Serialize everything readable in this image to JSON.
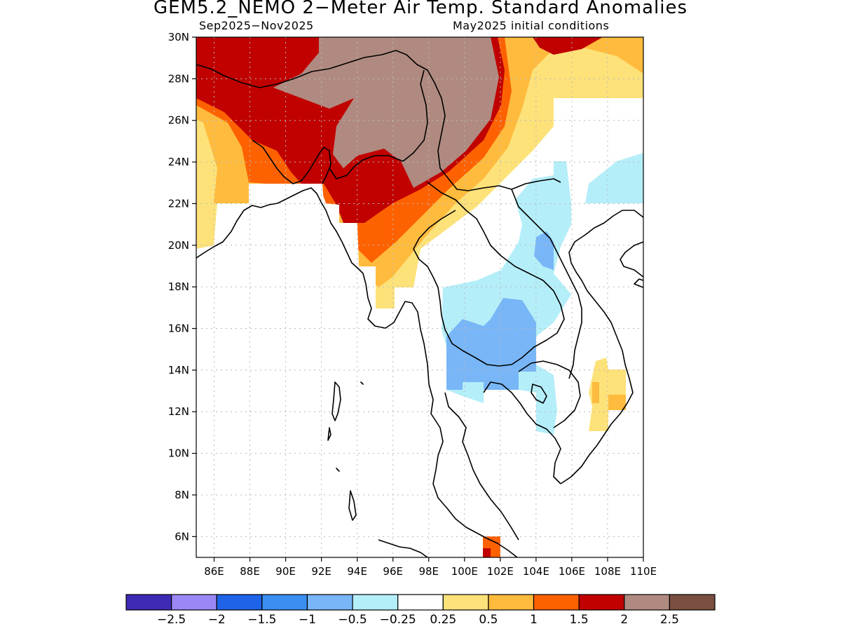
{
  "title": "GEM5.2_NEMO 2−Meter Air Temp. Standard Anomalies",
  "subtitle_left": "Sep2025−Nov2025",
  "subtitle_right": "May2025 initial conditions",
  "map": {
    "lon_range": [
      85,
      110
    ],
    "lat_range": [
      5,
      30
    ],
    "lat_ticks": [
      {
        "value": 30,
        "label": "30N"
      },
      {
        "value": 28,
        "label": "28N"
      },
      {
        "value": 26,
        "label": "26N"
      },
      {
        "value": 24,
        "label": "24N"
      },
      {
        "value": 22,
        "label": "22N"
      },
      {
        "value": 20,
        "label": "20N"
      },
      {
        "value": 18,
        "label": "18N"
      },
      {
        "value": 16,
        "label": "16N"
      },
      {
        "value": 14,
        "label": "14N"
      },
      {
        "value": 12,
        "label": "12N"
      },
      {
        "value": 10,
        "label": "10N"
      },
      {
        "value": 8,
        "label": "8N"
      },
      {
        "value": 6,
        "label": "6N"
      }
    ],
    "lon_ticks": [
      {
        "value": 86,
        "label": "86E"
      },
      {
        "value": 88,
        "label": "88E"
      },
      {
        "value": 90,
        "label": "90E"
      },
      {
        "value": 92,
        "label": "92E"
      },
      {
        "value": 94,
        "label": "94E"
      },
      {
        "value": 96,
        "label": "96E"
      },
      {
        "value": 98,
        "label": "98E"
      },
      {
        "value": 100,
        "label": "100E"
      },
      {
        "value": 102,
        "label": "102E"
      },
      {
        "value": 104,
        "label": "104E"
      },
      {
        "value": 106,
        "label": "106E"
      },
      {
        "value": 108,
        "label": "108E"
      },
      {
        "value": 110,
        "label": "110E"
      }
    ],
    "grid": true
  },
  "colorbar": {
    "colors": [
      "#3d2bb5",
      "#9b87f5",
      "#1f63e8",
      "#3a8ff0",
      "#78b6f7",
      "#b4eef9",
      "#ffffff",
      "#fde27a",
      "#ffbb3d",
      "#fe6200",
      "#c10000",
      "#b08a80",
      "#7a4e40"
    ],
    "labels": [
      "−2.5",
      "−2",
      "−1.5",
      "−1",
      "−0.5",
      "−0.25",
      "0.25",
      "0.5",
      "1",
      "1.5",
      "2",
      "2.5"
    ]
  },
  "anomaly_regions": [
    {
      "name": "very-warm-north",
      "level": "2 to 2.5",
      "color": "#b08a80"
    },
    {
      "name": "warm-north-belt",
      "level": "1.5 to 2",
      "color": "#c10000"
    },
    {
      "name": "warm-band",
      "level": "1 to 1.5",
      "color": "#fe6200"
    },
    {
      "name": "mild-warm-band",
      "level": "0.5 to 1",
      "color": "#ffbb3d"
    },
    {
      "name": "slight-warm-band",
      "level": "0.25 to 0.5",
      "color": "#fde27a"
    },
    {
      "name": "cool-indochina",
      "level": "-0.5 to -0.25",
      "color": "#b4eef9"
    },
    {
      "name": "cooler-thailand",
      "level": "-1 to -0.5",
      "color": "#78b6f7"
    }
  ]
}
